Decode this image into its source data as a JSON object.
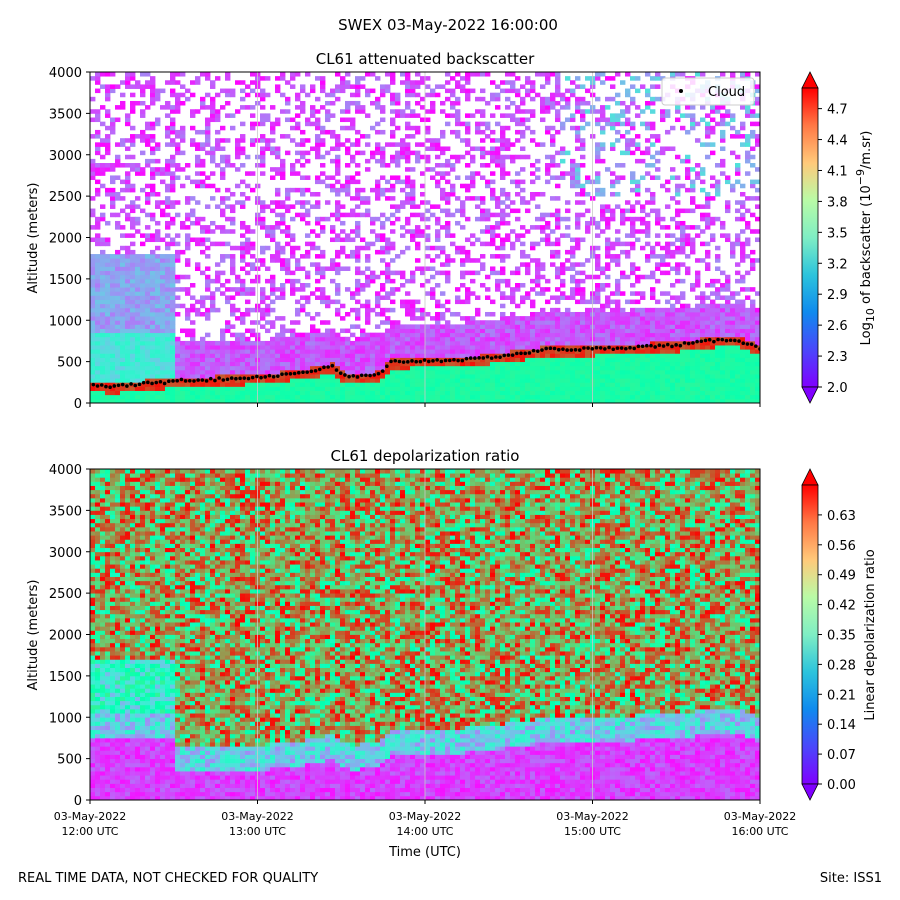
{
  "suptitle": "SWEX 03-May-2022 16:00:00",
  "footer": {
    "left": "REAL TIME DATA, NOT CHECKED FOR QUALITY",
    "right": "Site: ISS1"
  },
  "chart_data": [
    {
      "type": "heatmap",
      "title": "CL61 attenuated backscatter",
      "ylabel": "Altitude (meters)",
      "xlabel": "",
      "ylim": [
        0,
        4000
      ],
      "yticks": [
        0,
        500,
        1000,
        1500,
        2000,
        2500,
        3000,
        3500,
        4000
      ],
      "xlim_hours_utc": [
        12,
        16
      ],
      "colorbar": {
        "label_prefix": "Log",
        "label_sub": "10",
        "label_mid": " of backscatter (10",
        "label_sup": "−9",
        "label_suffix": "/m.sr)",
        "range": [
          2.0,
          4.9
        ],
        "ticks": [
          2.0,
          2.3,
          2.6,
          2.9,
          3.2,
          3.5,
          3.8,
          4.1,
          4.4,
          4.7
        ],
        "tick_labels": [
          "2.0",
          "2.3",
          "2.6",
          "2.9",
          "3.2",
          "3.5",
          "3.8",
          "4.1",
          "4.4",
          "4.7"
        ],
        "extend": "both",
        "colormap": "rainbow"
      },
      "legend": {
        "label": "Cloud",
        "placement": "top-right"
      },
      "cloud_base": {
        "time_hours": [
          12.02,
          12.15,
          12.3,
          12.45,
          12.5,
          12.7,
          12.9,
          13.1,
          13.3,
          13.45,
          13.5,
          13.55,
          13.7,
          13.75,
          13.8,
          14.0,
          14.3,
          14.5,
          14.65,
          14.7,
          14.9,
          15.1,
          15.3,
          15.5,
          15.7,
          15.85,
          15.95,
          16.0
        ],
        "altitude_m": [
          210,
          200,
          230,
          250,
          280,
          280,
          300,
          330,
          380,
          440,
          350,
          320,
          330,
          380,
          500,
          510,
          530,
          580,
          620,
          650,
          650,
          660,
          680,
          700,
          750,
          770,
          700,
          660
        ]
      }
    },
    {
      "type": "heatmap",
      "title": "CL61 depolarization ratio",
      "ylabel": "Altitude (meters)",
      "xlabel": "Time (UTC)",
      "ylim": [
        0,
        4000
      ],
      "yticks": [
        0,
        500,
        1000,
        1500,
        2000,
        2500,
        3000,
        3500,
        4000
      ],
      "xlim_hours_utc": [
        12,
        16
      ],
      "x_tick_hours": [
        12,
        13,
        14,
        15,
        16
      ],
      "x_tick_dates": [
        "03-May-2022",
        "03-May-2022",
        "03-May-2022",
        "03-May-2022",
        "03-May-2022"
      ],
      "x_tick_times": [
        "12:00 UTC",
        "13:00 UTC",
        "14:00 UTC",
        "15:00 UTC",
        "16:00 UTC"
      ],
      "colorbar": {
        "label": "Linear depolarization ratio",
        "range": [
          0.0,
          0.7
        ],
        "ticks": [
          0.0,
          0.07,
          0.14,
          0.21,
          0.28,
          0.35,
          0.42,
          0.49,
          0.56,
          0.63
        ],
        "tick_labels": [
          "0.00",
          "0.07",
          "0.14",
          "0.21",
          "0.28",
          "0.35",
          "0.42",
          "0.49",
          "0.56",
          "0.63"
        ],
        "extend": "both",
        "colormap": "rainbow"
      }
    }
  ]
}
